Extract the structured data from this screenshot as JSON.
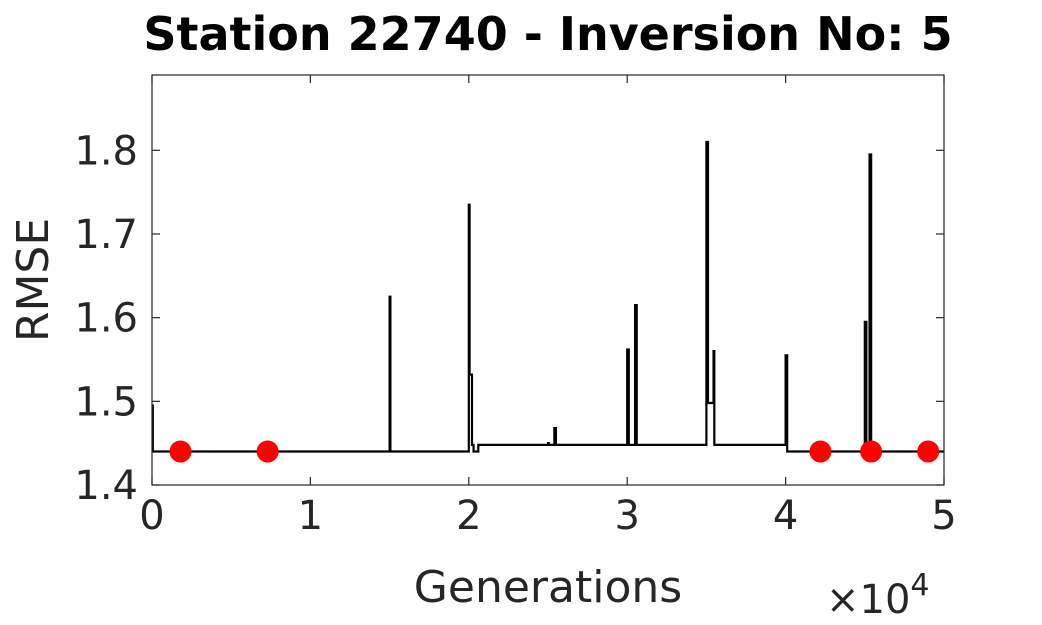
{
  "chart_data": {
    "type": "line",
    "title": "Station 22740 - Inversion No: 5",
    "xlabel": "Generations",
    "ylabel": "RMSE",
    "x_multiplier": "×10",
    "x_multiplier_exponent": "4",
    "xlim": [
      0,
      50000
    ],
    "ylim": [
      1.4,
      1.89
    ],
    "xticks": [
      0,
      10000,
      20000,
      30000,
      40000,
      50000
    ],
    "xtick_labels": [
      "0",
      "1",
      "2",
      "3",
      "4",
      "5"
    ],
    "yticks": [
      1.4,
      1.5,
      1.6,
      1.7,
      1.8
    ],
    "ytick_labels": [
      "1.4",
      "1.5",
      "1.6",
      "1.7",
      "1.8"
    ],
    "grid": false,
    "line_color": "#000000",
    "marker_color": "#ff0000",
    "series": [
      {
        "style": "line",
        "x": [
          0,
          50,
          50,
          100,
          15000,
          15000,
          15050,
          15050,
          20000,
          20000,
          20050,
          20050,
          20200,
          20200,
          20300,
          20300,
          20600,
          20600,
          25000,
          25000,
          25050,
          25050,
          25400,
          25400,
          25500,
          25500,
          30000,
          30000,
          30100,
          30100,
          30500,
          30500,
          30600,
          30600,
          35000,
          35000,
          35100,
          35100,
          35450,
          35450,
          35500,
          35500,
          40000,
          40000,
          40100,
          40100,
          45000,
          45000,
          45100,
          45100,
          45300,
          45300,
          45400,
          45400,
          50000
        ],
        "y": [
          1.495,
          1.495,
          1.44,
          1.44,
          1.44,
          1.625,
          1.625,
          1.44,
          1.44,
          1.735,
          1.735,
          1.532,
          1.532,
          1.448,
          1.448,
          1.44,
          1.44,
          1.448,
          1.448,
          1.45,
          1.45,
          1.448,
          1.448,
          1.468,
          1.468,
          1.448,
          1.448,
          1.562,
          1.562,
          1.448,
          1.448,
          1.615,
          1.615,
          1.448,
          1.448,
          1.81,
          1.81,
          1.498,
          1.498,
          1.56,
          1.56,
          1.448,
          1.448,
          1.555,
          1.555,
          1.44,
          1.44,
          1.595,
          1.595,
          1.44,
          1.44,
          1.795,
          1.795,
          1.44,
          1.44
        ]
      },
      {
        "style": "markers",
        "x": [
          1800,
          7300,
          42200,
          45400,
          49000
        ],
        "y": [
          1.44,
          1.44,
          1.44,
          1.44,
          1.44
        ]
      }
    ]
  }
}
